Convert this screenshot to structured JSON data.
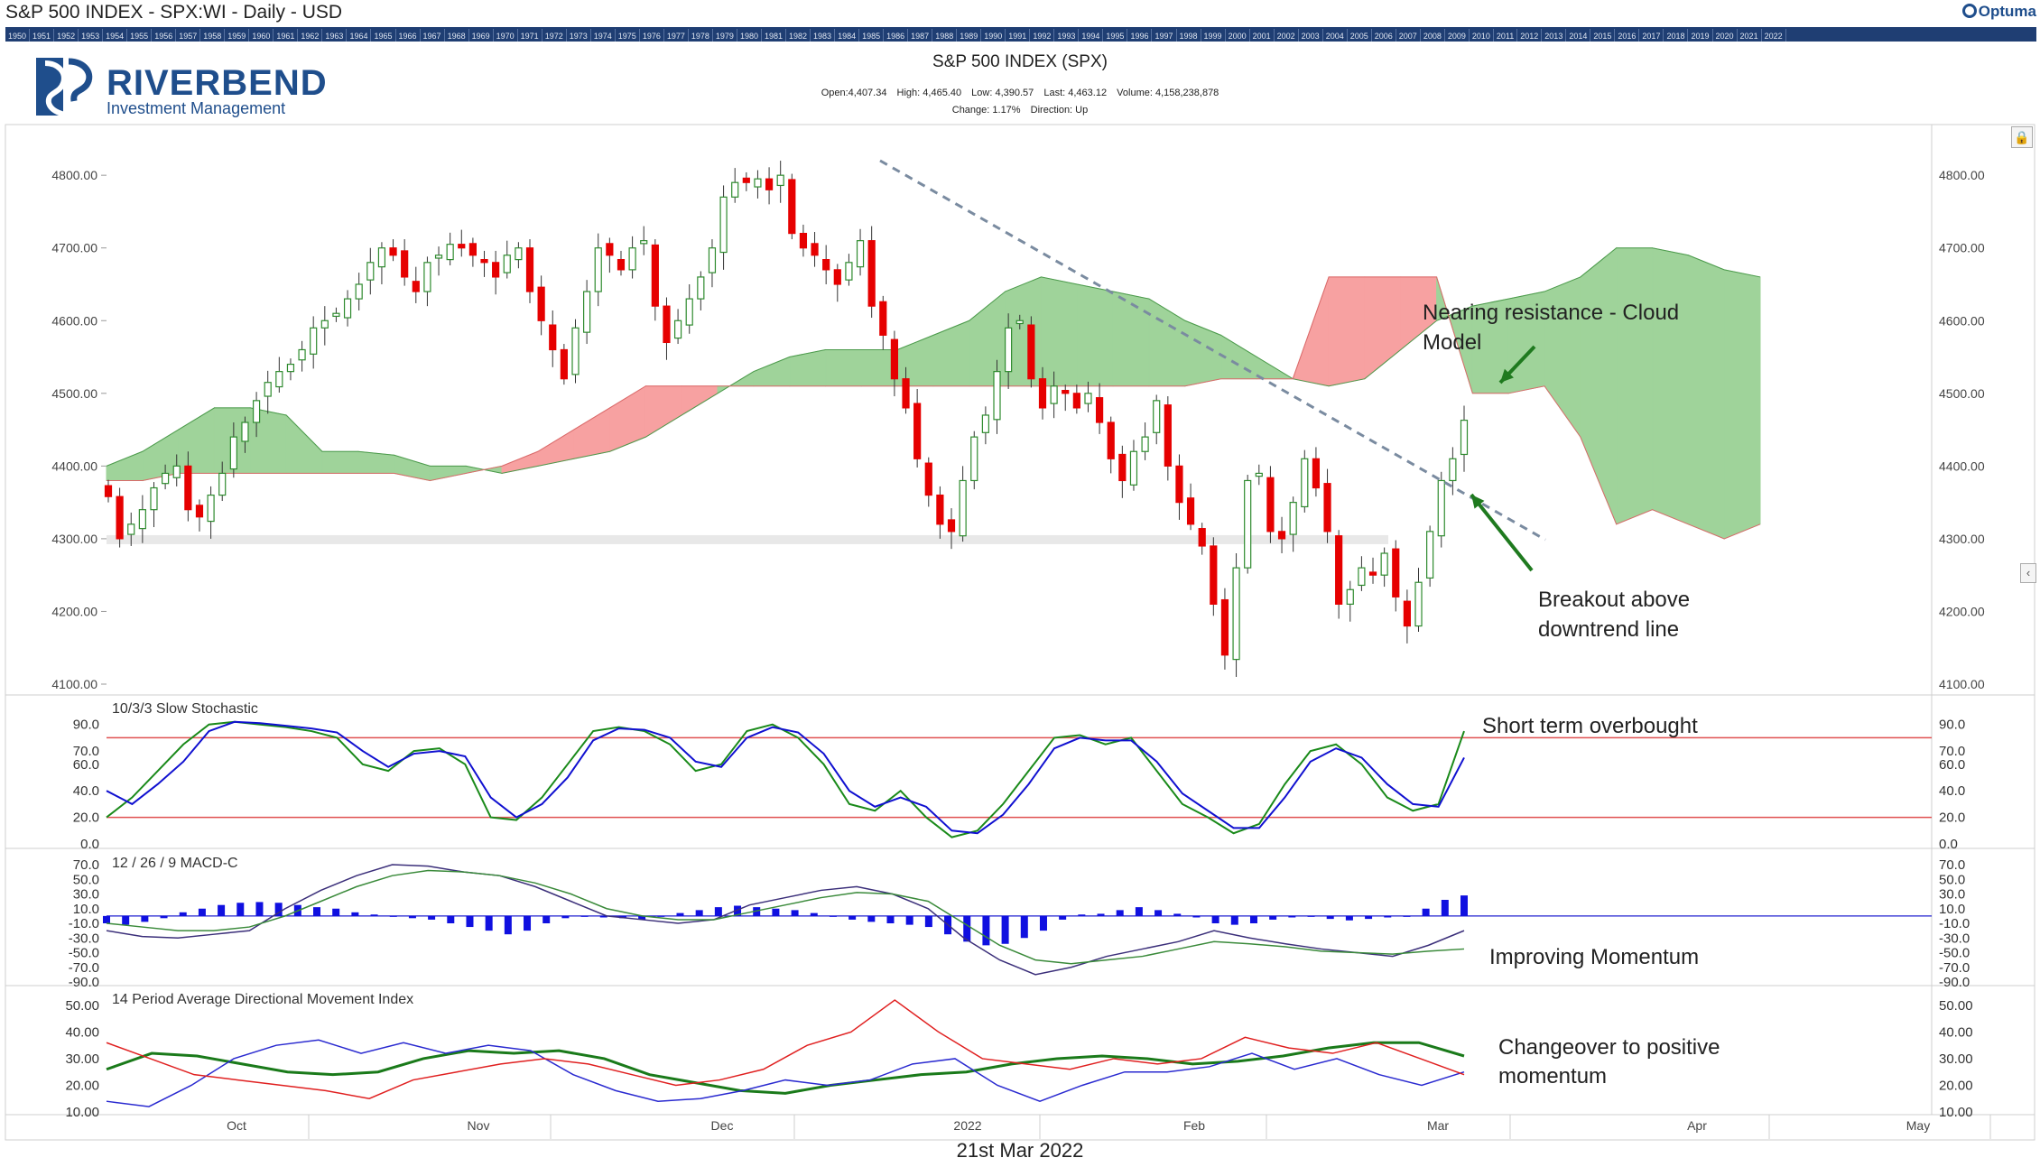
{
  "window_title": "S&P 500 INDEX - SPX:WI - Daily - USD",
  "app_logo": "Optuma",
  "year_bar": [
    "1950",
    "1951",
    "1952",
    "1953",
    "1954",
    "1955",
    "1956",
    "1957",
    "1958",
    "1959",
    "1960",
    "1961",
    "1962",
    "1963",
    "1964",
    "1965",
    "1966",
    "1967",
    "1968",
    "1969",
    "1970",
    "1971",
    "1972",
    "1973",
    "1974",
    "1975",
    "1976",
    "1977",
    "1978",
    "1979",
    "1980",
    "1981",
    "1982",
    "1983",
    "1984",
    "1985",
    "1986",
    "1987",
    "1988",
    "1989",
    "1990",
    "1991",
    "1992",
    "1993",
    "1994",
    "1995",
    "1996",
    "1997",
    "1998",
    "1999",
    "2000",
    "2001",
    "2002",
    "2003",
    "2004",
    "2005",
    "2006",
    "2007",
    "2008",
    "2009",
    "2010",
    "2011",
    "2012",
    "2013",
    "2014",
    "2015",
    "2016",
    "2017",
    "2018",
    "2019",
    "2020",
    "2021",
    "2022"
  ],
  "brand": {
    "name": "RIVERBEND",
    "tagline": "Investment Management"
  },
  "header": {
    "title": "S&P 500 INDEX (SPX)",
    "open": "Open:4,407.34",
    "high": "High: 4,465.40",
    "low": "Low: 4,390.57",
    "last": "Last: 4,463.12",
    "volume": "Volume: 4,158,238,878",
    "change": "Change: 1.17%",
    "direction": "Direction: Up"
  },
  "footer_date": "21st Mar 2022",
  "colors": {
    "up": "#2e8b2e",
    "down": "#e60000",
    "cloud_green": "#9fd39a",
    "cloud_red": "#f7a1a1",
    "trendline": "#7a8ba0",
    "arrow": "#1f7a1f",
    "stoch_k": "#1a8a1a",
    "stoch_d": "#1010d0",
    "macd_bar": "#1010e0"
  },
  "chart_data": [
    {
      "type": "candlestick",
      "title": "S&P 500 INDEX (SPX)",
      "overlays": [
        "ichimoku cloud",
        "downtrend line"
      ],
      "ylim": [
        4100,
        4830
      ],
      "y_ticks": [
        "4100.00",
        "4200.00",
        "4300.00",
        "4400.00",
        "4500.00",
        "4600.00",
        "4700.00",
        "4800.00"
      ],
      "x_ticks": [
        "Oct",
        "Nov",
        "Dec",
        "2022",
        "Feb",
        "Mar",
        "Apr",
        "May"
      ],
      "closes": [
        4358,
        4300,
        4320,
        4340,
        4370,
        4390,
        4400,
        4340,
        4330,
        4360,
        4390,
        4440,
        4460,
        4490,
        4515,
        4530,
        4540,
        4560,
        4590,
        4600,
        4610,
        4630,
        4650,
        4680,
        4700,
        4690,
        4660,
        4640,
        4680,
        4690,
        4705,
        4700,
        4690,
        4680,
        4660,
        4690,
        4700,
        4640,
        4600,
        4560,
        4520,
        4590,
        4640,
        4700,
        4690,
        4670,
        4700,
        4710,
        4620,
        4570,
        4600,
        4630,
        4660,
        4700,
        4770,
        4790,
        4790,
        4795,
        4780,
        4800,
        4720,
        4700,
        4690,
        4670,
        4650,
        4680,
        4710,
        4620,
        4580,
        4520,
        4480,
        4410,
        4360,
        4320,
        4310,
        4380,
        4440,
        4470,
        4530,
        4590,
        4600,
        4520,
        4480,
        4510,
        4500,
        4480,
        4500,
        4460,
        4410,
        4380,
        4420,
        4440,
        4490,
        4400,
        4350,
        4320,
        4290,
        4210,
        4140,
        4260,
        4380,
        4390,
        4310,
        4300,
        4350,
        4410,
        4370,
        4310,
        4210,
        4230,
        4260,
        4250,
        4280,
        4220,
        4180,
        4240,
        4310,
        4380,
        4410,
        4463
      ],
      "series": [
        {
          "name": "Cloud Span A",
          "values": [
            4400,
            4420,
            4450,
            4480,
            4480,
            4470,
            4420,
            4420,
            4415,
            4400,
            4400,
            4390,
            4400,
            4410,
            4420,
            4440,
            4470,
            4500,
            4530,
            4550,
            4560,
            4560,
            4560,
            4580,
            4600,
            4640,
            4660,
            4650,
            4640,
            4630,
            4600,
            4580,
            4550,
            4520,
            4510,
            4520,
            4560,
            4600,
            4620,
            4630,
            4640,
            4660,
            4700,
            4700,
            4690,
            4670,
            4660
          ]
        },
        {
          "name": "Cloud Span B",
          "values": [
            4380,
            4380,
            4390,
            4390,
            4390,
            4390,
            4390,
            4390,
            4390,
            4380,
            4390,
            4400,
            4420,
            4450,
            4480,
            4510,
            4510,
            4510,
            4510,
            4510,
            4510,
            4510,
            4510,
            4510,
            4510,
            4510,
            4510,
            4510,
            4510,
            4510,
            4510,
            4520,
            4520,
            4520,
            4660,
            4660,
            4660,
            4660,
            4500,
            4500,
            4510,
            4440,
            4320,
            4340,
            4320,
            4300,
            4320
          ]
        }
      ],
      "annotations": [
        "Nearing resistance - Cloud Model",
        "Breakout above downtrend line"
      ]
    },
    {
      "type": "line",
      "title": "10/3/3 Slow Stochastic",
      "y_ticks": [
        "0.0",
        "20.0",
        "40.0",
        "60.0",
        "70.0",
        "90.0"
      ],
      "levels": [
        20,
        80
      ],
      "series": [
        {
          "name": "K",
          "values": [
            20,
            35,
            55,
            75,
            90,
            92,
            90,
            88,
            85,
            80,
            60,
            55,
            70,
            72,
            60,
            20,
            18,
            35,
            60,
            85,
            88,
            85,
            75,
            55,
            60,
            85,
            90,
            80,
            60,
            30,
            25,
            40,
            20,
            5,
            10,
            30,
            55,
            80,
            82,
            75,
            80,
            55,
            30,
            20,
            8,
            15,
            45,
            70,
            75,
            60,
            35,
            25,
            30,
            85
          ]
        },
        {
          "name": "D",
          "values": [
            40,
            30,
            45,
            62,
            85,
            92,
            91,
            89,
            87,
            84,
            70,
            58,
            68,
            70,
            66,
            35,
            20,
            30,
            50,
            78,
            87,
            86,
            80,
            62,
            58,
            80,
            88,
            84,
            68,
            40,
            28,
            35,
            28,
            10,
            8,
            22,
            45,
            72,
            80,
            78,
            78,
            62,
            38,
            25,
            12,
            12,
            35,
            62,
            72,
            65,
            45,
            30,
            28,
            65
          ]
        }
      ],
      "annotations": [
        "Short term overbought"
      ]
    },
    {
      "type": "bar",
      "title": "12 / 26 / 9 MACD-C",
      "y_ticks": [
        "-90.0",
        "-70.0",
        "-50.0",
        "-30.0",
        "-10.0",
        "10.0",
        "30.0",
        "50.0",
        "70.0"
      ],
      "series": [
        {
          "name": "Histogram",
          "values": [
            -10,
            -12,
            -8,
            -3,
            5,
            10,
            15,
            18,
            19,
            18,
            15,
            12,
            10,
            5,
            2,
            0,
            -3,
            -5,
            -10,
            -15,
            -20,
            -25,
            -20,
            -10,
            -3,
            0,
            -2,
            -3,
            -5,
            0,
            4,
            8,
            12,
            14,
            12,
            10,
            8,
            4,
            0,
            -5,
            -8,
            -10,
            -12,
            -15,
            -25,
            -35,
            -40,
            -38,
            -30,
            -20,
            -5,
            2,
            3,
            8,
            12,
            8,
            3,
            -2,
            -10,
            -12,
            -10,
            -5,
            -2,
            -1,
            -4,
            -6,
            -4,
            -2,
            0,
            10,
            22,
            28
          ]
        },
        {
          "name": "MACD",
          "values": [
            -20,
            -28,
            -30,
            -25,
            -20,
            10,
            35,
            55,
            70,
            68,
            60,
            55,
            40,
            20,
            0,
            -5,
            -10,
            -5,
            15,
            25,
            35,
            40,
            30,
            10,
            -30,
            -60,
            -80,
            -70,
            -55,
            -45,
            -35,
            -20,
            -30,
            -38,
            -45,
            -50,
            -55,
            -40,
            -20
          ]
        },
        {
          "name": "Signal",
          "values": [
            -10,
            -15,
            -20,
            -20,
            -15,
            0,
            20,
            40,
            55,
            62,
            60,
            55,
            45,
            30,
            10,
            0,
            -5,
            -5,
            5,
            15,
            25,
            32,
            30,
            20,
            -10,
            -40,
            -60,
            -65,
            -60,
            -55,
            -45,
            -35,
            -38,
            -42,
            -48,
            -50,
            -52,
            -48,
            -45
          ]
        }
      ],
      "annotations": [
        "Improving Momentum"
      ]
    },
    {
      "type": "line",
      "title": "14 Period Average Directional Movement Index",
      "y_ticks": [
        "10.00",
        "20.00",
        "30.00",
        "40.00",
        "50.00"
      ],
      "series": [
        {
          "name": "ADX",
          "values": [
            26,
            32,
            31,
            28,
            25,
            24,
            25,
            30,
            33,
            32,
            33,
            30,
            24,
            21,
            18,
            17,
            20,
            22,
            24,
            25,
            28,
            30,
            31,
            30,
            28,
            29,
            31,
            34,
            36,
            36,
            31
          ]
        },
        {
          "name": "+DI",
          "values": [
            14,
            12,
            20,
            30,
            35,
            37,
            32,
            36,
            32,
            35,
            33,
            24,
            18,
            14,
            15,
            18,
            22,
            20,
            22,
            28,
            30,
            20,
            14,
            20,
            25,
            25,
            27,
            32,
            26,
            30,
            24,
            20,
            25
          ]
        },
        {
          "name": "-DI",
          "values": [
            36,
            30,
            24,
            22,
            20,
            18,
            15,
            22,
            25,
            28,
            30,
            28,
            24,
            20,
            22,
            26,
            35,
            40,
            52,
            40,
            30,
            28,
            26,
            30,
            28,
            30,
            38,
            34,
            32,
            36,
            30,
            24
          ]
        }
      ],
      "annotations": [
        "Changeover to positive momentum"
      ]
    }
  ]
}
